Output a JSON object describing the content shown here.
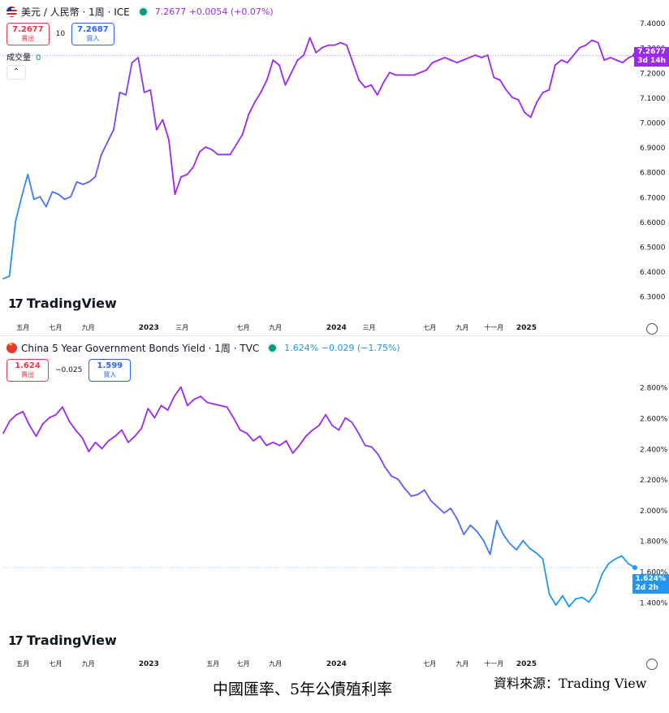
{
  "top": {
    "symbol": "美元 / 人民幣 · 1周 · ICE",
    "change": "7.2677 +0.0054 (+0.07%)",
    "sell_value": "7.2677",
    "sell_label": "賣出",
    "spread": "10",
    "buy_value": "7.2687",
    "buy_label": "買入",
    "volume_label": "成交量",
    "volume_value": "0",
    "price_badge": "7.2677",
    "countdown": "3d 14h",
    "line_color": "#9c27f5",
    "watermark": "TradingView"
  },
  "bottom": {
    "symbol": "China 5 Year Government Bonds Yield · 1周 · TVC",
    "change": "1.624% −0.029 (−1.75%)",
    "sell_value": "1.624",
    "sell_label": "賣出",
    "spread": "−0.025",
    "buy_value": "1.599",
    "buy_label": "買入",
    "price_badge": "1.624%",
    "countdown": "2d 2h",
    "watermark": "TradingView"
  },
  "caption": {
    "title": "中國匯率、5年公債殖利率",
    "source": "資料來源：Trading View"
  },
  "chart_data": [
    {
      "type": "line",
      "title": "美元 / 人民幣 · 1周 · ICE",
      "ylim": [
        6.25,
        7.42
      ],
      "yticks": [
        "7.4000",
        "7.3000",
        "7.2000",
        "7.1000",
        "7.0000",
        "6.9000",
        "6.8000",
        "6.7000",
        "6.6000",
        "6.5000",
        "6.4000",
        "6.3000"
      ],
      "xlabels": [
        {
          "label": "五月",
          "t": 0.025
        },
        {
          "label": "七月",
          "t": 0.08
        },
        {
          "label": "九月",
          "t": 0.135
        },
        {
          "label": "2023",
          "t": 0.237
        },
        {
          "label": "三月",
          "t": 0.293
        },
        {
          "label": "七月",
          "t": 0.396
        },
        {
          "label": "九月",
          "t": 0.45
        },
        {
          "label": "2024",
          "t": 0.553
        },
        {
          "label": "三月",
          "t": 0.608
        },
        {
          "label": "七月",
          "t": 0.71
        },
        {
          "label": "九月",
          "t": 0.765
        },
        {
          "label": "十一月",
          "t": 0.818
        },
        {
          "label": "2025",
          "t": 0.873
        }
      ],
      "values": [
        6.37,
        6.38,
        6.6,
        6.7,
        6.79,
        6.69,
        6.7,
        6.66,
        6.72,
        6.71,
        6.69,
        6.7,
        6.76,
        6.75,
        6.76,
        6.78,
        6.87,
        6.92,
        6.97,
        7.12,
        7.11,
        7.24,
        7.26,
        7.12,
        7.13,
        6.97,
        7.01,
        6.93,
        6.71,
        6.78,
        6.79,
        6.82,
        6.88,
        6.9,
        6.89,
        6.87,
        6.87,
        6.87,
        6.91,
        6.95,
        7.03,
        7.08,
        7.12,
        7.17,
        7.25,
        7.23,
        7.15,
        7.2,
        7.25,
        7.27,
        7.34,
        7.28,
        7.3,
        7.31,
        7.31,
        7.32,
        7.31,
        7.24,
        7.17,
        7.14,
        7.15,
        7.11,
        7.16,
        7.2,
        7.19,
        7.19,
        7.19,
        7.19,
        7.2,
        7.21,
        7.24,
        7.25,
        7.26,
        7.25,
        7.24,
        7.25,
        7.26,
        7.27,
        7.26,
        7.27,
        7.18,
        7.17,
        7.13,
        7.1,
        7.09,
        7.04,
        7.02,
        7.08,
        7.12,
        7.13,
        7.23,
        7.25,
        7.24,
        7.27,
        7.3,
        7.31,
        7.33,
        7.32,
        7.25,
        7.26,
        7.25,
        7.24,
        7.26,
        7.27
      ],
      "last": 7.2677
    },
    {
      "type": "line",
      "title": "China 5 Year Government Bonds Yield · 1周 · TVC",
      "ylim": [
        1.28,
        2.92
      ],
      "yticks": [
        "2.800%",
        "2.600%",
        "2.400%",
        "2.200%",
        "2.000%",
        "1.800%",
        "1.600%",
        "1.400%"
      ],
      "xlabels": [
        {
          "label": "五月",
          "t": 0.025
        },
        {
          "label": "七月",
          "t": 0.08
        },
        {
          "label": "九月",
          "t": 0.135
        },
        {
          "label": "2023",
          "t": 0.237
        },
        {
          "label": "五月",
          "t": 0.345
        },
        {
          "label": "七月",
          "t": 0.396
        },
        {
          "label": "九月",
          "t": 0.45
        },
        {
          "label": "2024",
          "t": 0.553
        },
        {
          "label": "七月",
          "t": 0.71
        },
        {
          "label": "九月",
          "t": 0.765
        },
        {
          "label": "十一月",
          "t": 0.818
        },
        {
          "label": "2025",
          "t": 0.873
        }
      ],
      "values": [
        2.5,
        2.58,
        2.62,
        2.64,
        2.55,
        2.48,
        2.56,
        2.6,
        2.62,
        2.67,
        2.58,
        2.52,
        2.47,
        2.38,
        2.44,
        2.4,
        2.45,
        2.48,
        2.52,
        2.44,
        2.48,
        2.53,
        2.66,
        2.6,
        2.68,
        2.65,
        2.74,
        2.8,
        2.68,
        2.72,
        2.74,
        2.7,
        2.69,
        2.68,
        2.67,
        2.6,
        2.52,
        2.5,
        2.45,
        2.48,
        2.42,
        2.44,
        2.42,
        2.45,
        2.37,
        2.42,
        2.48,
        2.52,
        2.55,
        2.62,
        2.55,
        2.52,
        2.6,
        2.57,
        2.5,
        2.42,
        2.41,
        2.36,
        2.28,
        2.22,
        2.2,
        2.14,
        2.09,
        2.1,
        2.13,
        2.06,
        2.02,
        1.98,
        2.01,
        1.94,
        1.84,
        1.9,
        1.86,
        1.8,
        1.71,
        1.93,
        1.84,
        1.78,
        1.74,
        1.8,
        1.75,
        1.72,
        1.68,
        1.45,
        1.38,
        1.44,
        1.37,
        1.42,
        1.43,
        1.4,
        1.46,
        1.58,
        1.65,
        1.68,
        1.7,
        1.65,
        1.624
      ],
      "last": 1.624
    }
  ]
}
